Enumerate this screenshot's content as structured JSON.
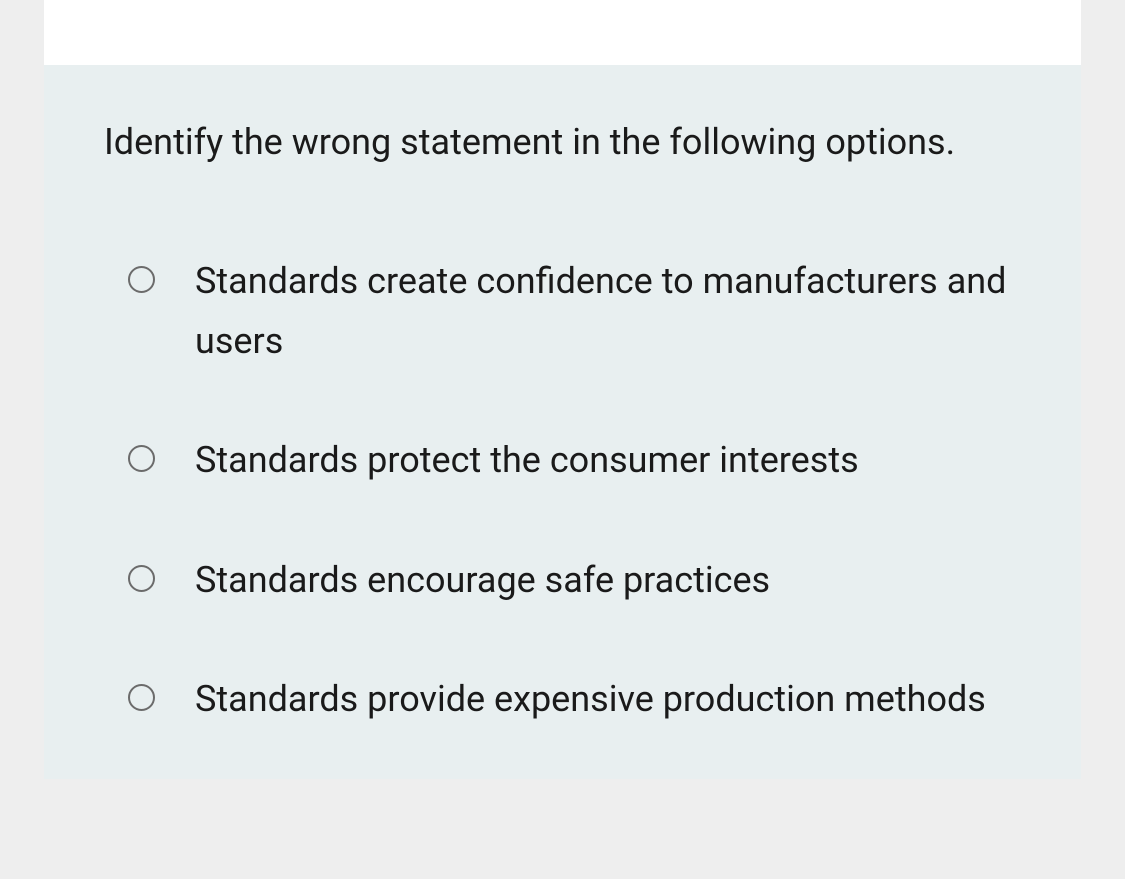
{
  "question": {
    "text": "Identify the wrong statement in the following options.",
    "options": [
      {
        "label": "Standards create confidence to manufacturers and users"
      },
      {
        "label": "Standards protect the consumer interests"
      },
      {
        "label": "Standards encourage safe practices"
      },
      {
        "label": "Standards provide expensive production methods"
      }
    ]
  },
  "colors": {
    "page_background": "#eeeeee",
    "card_background": "#ffffff",
    "panel_background": "#e8eff0",
    "text_color": "#1a1a1a",
    "radio_border": "#6b6b6b"
  },
  "typography": {
    "font_size": 36,
    "line_height": 1.65,
    "font_weight": 400
  }
}
